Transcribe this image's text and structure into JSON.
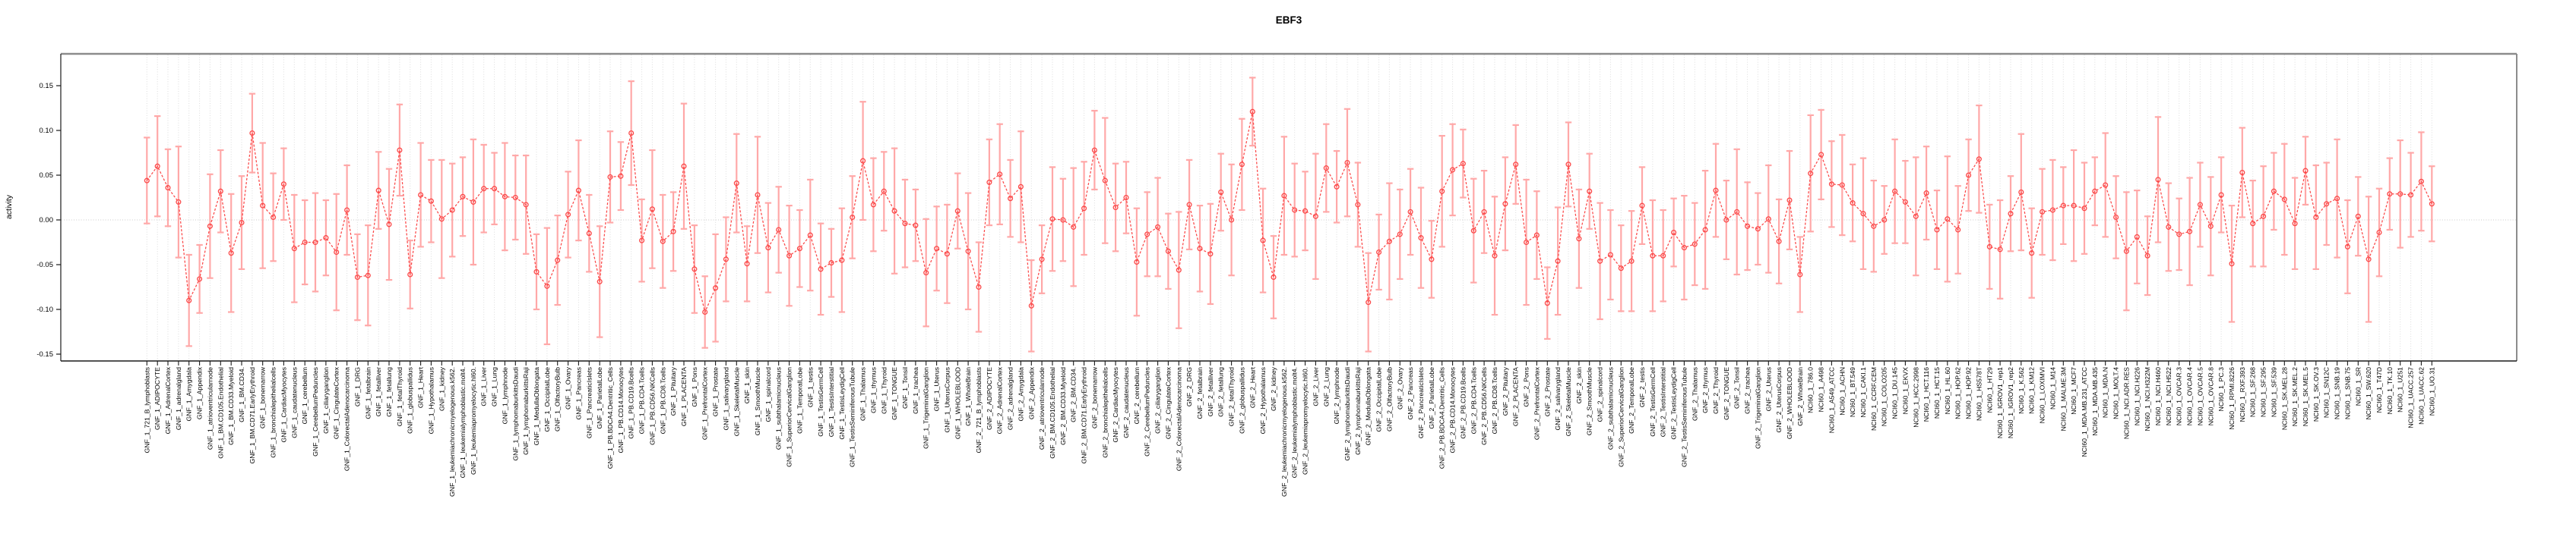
{
  "title": "EBF3",
  "y_axis": {
    "label": "activity",
    "ticks": [
      0.15,
      0.1,
      0.05,
      0.0,
      -0.05,
      -0.1,
      -0.15
    ],
    "tick_labels": [
      "0.15",
      "0.10",
      "0.05",
      "0.00",
      "-0.05",
      "-0.10",
      "-0.15"
    ]
  },
  "chart_data": {
    "type": "line",
    "title": "EBF3",
    "xlabel": "",
    "ylabel": "activity",
    "ylim": [
      -0.17,
      0.175
    ],
    "grid": "vertical-dotted-per-category",
    "zero_line": true,
    "error_bars": true,
    "point_style": "open-circle",
    "line_style": "dashed",
    "colors": {
      "series": "#fb4848",
      "error_bar": "#ffa8a8",
      "grid": "#dcdcdc",
      "zero_line": "#d4d4d4",
      "box_top_right": "#8c8c8c",
      "axis": "#1a1a1a"
    },
    "categories": [
      "GNF_1_721_B_lymphoblasts",
      "GNF_1_ADIPOCYTE",
      "GNF_1_AdrenalCortex",
      "GNF_1_adrenalgland",
      "GNF_1_Amygdala",
      "GNF_1_Appendix",
      "GNF_1_atrioventricularnode",
      "GNF_1_BM.CD105.Endothelial",
      "GNF_1_BM.CD33.Myeloid",
      "GNF_1_BM.CD34.",
      "GNF_1_BM.CD71.EarlyErythroid",
      "GNF_1_bonemarrow",
      "GNF_1_bronchialepithelialcells",
      "GNF_1_CardiacMyocytes",
      "GNF_1_caudatenucleus",
      "GNF_1_cerebellum",
      "GNF_1_CerebellumPeduncles",
      "GNF_1_ciliaryganglion",
      "GNF_1_CingulateCortex",
      "GNF_1_ColorectalAdenocarcinoma",
      "GNF_1_DRG",
      "GNF_1_fetalbrain",
      "GNF_1_fetalliver",
      "GNF_1_fetallung",
      "GNF_1_fetalThyroid",
      "GNF_1_globuspallidus",
      "GNF_1_Heart",
      "GNF_1_Hypothalamus",
      "GNF_1_kidney",
      "GNF_1_leukemiachronicmyelogenous.k562.",
      "GNF_1_leukemialymphoblastic.molt4.",
      "GNF_1_leukemiapromyelocytic.hl60.",
      "GNF_1_Liver",
      "GNF_1_Lung",
      "GNF_1_lymphnode",
      "GNF_1_lymphomaburkittsDaudi",
      "GNF_1_lymphomaburkittsRaji",
      "GNF_1_MedullaOblongata",
      "GNF_1_OccipitalLobe",
      "GNF_1_OlfactoryBulb",
      "GNF_1_Ovary",
      "GNF_1_Pancreas",
      "GNF_1_PancreaticIslets",
      "GNF_1_ParietalLobe",
      "GNF_1_PB.BDCA4.Dentritic_Cells",
      "GNF_1_PB.CD14.Monocytes",
      "GNF_1_PB.CD19.Bcells",
      "GNF_1_PB.CD4.Tcells",
      "GNF_1_PB.CD56.NKCells",
      "GNF_1_PB.CD8.Tcells",
      "GNF_1_Pituitary",
      "GNF_1_PLACENTA",
      "GNF_1_Pons",
      "GNF_1_PrefrontalCortex",
      "GNF_1_Prostate",
      "GNF_1_salivarygland",
      "GNF_1_SkeletalMuscle",
      "GNF_1_skin",
      "GNF_1_SmoothMuscle",
      "GNF_1_spinalcord",
      "GNF_1_subthalamicnucleus",
      "GNF_1_SuperiorCervicalGanglion",
      "GNF_1_TemporalLobe",
      "GNF_1_testis",
      "GNF_1_TestisGermCell",
      "GNF_1_TestisInterstitial",
      "GNF_1_TestisLeydigCell",
      "GNF_1_TestisSeminiferousTubule",
      "GNF_1_Thalamus",
      "GNF_1_thymus",
      "GNF_1_Thyroid",
      "GNF_1_TONGUE",
      "GNF_1_Tonsil",
      "GNF_1_trachea",
      "GNF_1_TrigeminalGanglion",
      "GNF_1_Uterus",
      "GNF_1_UterusCorpus",
      "GNF_1_WHOLEBLOOD",
      "GNF_1_WholeBrain",
      "GNF_2_721_B_lymphoblasts",
      "GNF_2_ADIPOCYTE",
      "GNF_2_AdrenalCortex",
      "GNF_2_adrenalgland",
      "GNF_2_Amygdala",
      "GNF_2_Appendix",
      "GNF_2_atrioventricularnode",
      "GNF_2_BM.CD105.Endothelial",
      "GNF_2_BM.CD33.Myeloid",
      "GNF_2_BM.CD34.",
      "GNF_2_BM.CD71.EarlyErythroid",
      "GNF_2_bonemarrow",
      "GNF_2_bronchialepithelialcells",
      "GNF_2_CardiacMyocytes",
      "GNF_2_caudatenucleus",
      "GNF_2_cerebellum",
      "GNF_2_CerebellumPeduncles",
      "GNF_2_ciliaryganglion",
      "GNF_2_CingulateCortex",
      "GNF_2_ColorectalAdenocarcinoma",
      "GNF_2_DRG",
      "GNF_2_fetalbrain",
      "GNF_2_fetalliver",
      "GNF_2_fetallung",
      "GNF_2_fetalThyroid",
      "GNF_2_globuspallidus",
      "GNF_2_Heart",
      "GNF_2_Hypothalamus",
      "GNF_2_kidney",
      "GNF_2_leukemiachronicmyelogenous.k562.",
      "GNF_2_leukemialymphoblastic.molt4.",
      "GNF_2_leukemiapromyelocytic.hl60.",
      "GNF_2_Liver",
      "GNF_2_Lung",
      "GNF_2_lymphnode",
      "GNF_2_lymphomaburkittsDaudi",
      "GNF_2_lymphomaburkittsRaji",
      "GNF_2_MedullaOblongata",
      "GNF_2_OccipitalLobe",
      "GNF_2_OlfactoryBulb",
      "GNF_2_Ovary",
      "GNF_2_Pancreas",
      "GNF_2_PancreaticIslets",
      "GNF_2_ParietalLobe",
      "GNF_2_PB.BDCA4.Dentritic_Cells",
      "GNF_2_PB.CD14.Monocytes",
      "GNF_2_PB.CD19.Bcells",
      "GNF_2_PB.CD4.Tcells",
      "GNF_2_PB.CD56.NKCells",
      "GNF_2_PB.CD8.Tcells",
      "GNF_2_Pituitary",
      "GNF_2_PLACENTA",
      "GNF_2_Pons",
      "GNF_2_PrefrontalCortex",
      "GNF_2_Prostate",
      "GNF_2_salivarygland",
      "GNF_2_SkeletalMuscle",
      "GNF_2_skin",
      "GNF_2_SmoothMuscle",
      "GNF_2_spinalcord",
      "GNF_2_subthalamicnucleus",
      "GNF_2_SuperiorCervicalGanglion",
      "GNF_2_TemporalLobe",
      "GNF_2_testis",
      "GNF_2_TestisGermCell",
      "GNF_2_TestisInterstitial",
      "GNF_2_TestisLeydigCell",
      "GNF_2_TestisSeminiferousTubule",
      "GNF_2_Thalamus",
      "GNF_2_thymus",
      "GNF_2_Thyroid",
      "GNF_2_TONGUE",
      "GNF_2_Tonsil",
      "GNF_2_trachea",
      "GNF_2_TrigeminalGanglion",
      "GNF_2_Uterus",
      "GNF_2_UterusCorpus",
      "GNF_2_WHOLEBLOOD",
      "GNF_2_WholeBrain",
      "NCI60_1_786.0",
      "NCI60_1_A498",
      "NCI60_1_A549_ATCC",
      "NCI60_1_ACHN",
      "NCI60_1_BT.549",
      "NCI60_1_CAKI.1",
      "NCI60_1_CCRF.CEM",
      "NCI60_1_COLO205",
      "NCI60_1_DU.145",
      "NCI60_1_EKVX",
      "NCI60_1_HCC.2998",
      "NCI60_1_HCT.116",
      "NCI60_1_HCT.15",
      "NCI60_1_HL.60",
      "NCI60_1_HOP.62",
      "NCI60_1_HOP.92",
      "NCI60_1_HS578T",
      "NCI60_1_HT29",
      "NCI60_1_IGROV1_rep1",
      "NCI60_1_IGROV1_rep2",
      "NCI60_1_K.562",
      "NCI60_1_KM12",
      "NCI60_1_LOXIMVI",
      "NCI60_1_M14",
      "NCI60_1_MALME.3M",
      "NCI60_1_MCF7",
      "NCI60_1_MDA.MB.231_ATCC",
      "NCI60_1_MDA.MB.435",
      "NCI60_1_MDA.N",
      "NCI60_1_MOLT.4",
      "NCI60_1_NCI.ADR.RES",
      "NCI60_1_NCI.H226",
      "NCI60_1_NCI.H322M",
      "NCI60_1_NCI.H460",
      "NCI60_1_NCI.H522",
      "NCI60_1_OVCAR.3",
      "NCI60_1_OVCAR.4",
      "NCI60_1_OVCAR.5",
      "NCI60_1_OVCAR.8",
      "NCI60_1_PC.3",
      "NCI60_1_RPMI.8226",
      "NCI60_1_RXF.393",
      "NCI60_1_SF.268",
      "NCI60_1_SF.295",
      "NCI60_1_SF.539",
      "NCI60_1_SK.MEL.28",
      "NCI60_1_SK.MEL.2",
      "NCI60_1_SK.MEL.5",
      "NCI60_1_SK.OV.3",
      "NCI60_1_SN12C",
      "NCI60_1_SNB.19",
      "NCI60_1_SNB.75",
      "NCI60_1_SR",
      "NCI60_1_SW.620",
      "NCI60_1_T47D",
      "NCI60_1_TK.10",
      "NCI60_1_U251",
      "NCI60_1_UACC.257",
      "NCI60_1_UACC.62",
      "NCI60_1_UO.31"
    ],
    "values": [
      0.044,
      0.06,
      0.036,
      0.02,
      -0.09,
      -0.066,
      -0.007,
      0.032,
      -0.037,
      -0.003,
      0.097,
      0.016,
      0.003,
      0.04,
      -0.032,
      -0.025,
      -0.025,
      -0.02,
      -0.036,
      0.011,
      -0.064,
      -0.062,
      0.033,
      -0.005,
      0.078,
      -0.061,
      0.028,
      0.021,
      0.001,
      0.011,
      0.026,
      0.02,
      0.035,
      0.035,
      0.026,
      0.025,
      0.017,
      -0.058,
      -0.074,
      -0.045,
      0.006,
      0.033,
      -0.015,
      -0.069,
      0.048,
      0.049,
      0.097,
      -0.023,
      0.012,
      -0.024,
      -0.013,
      0.06,
      -0.055,
      -0.103,
      -0.076,
      -0.044,
      0.041,
      -0.049,
      0.028,
      -0.031,
      -0.011,
      -0.04,
      -0.032,
      -0.017,
      -0.055,
      -0.048,
      -0.045,
      0.003,
      0.066,
      0.017,
      0.032,
      0.01,
      -0.004,
      -0.006,
      -0.059,
      -0.032,
      -0.038,
      0.01,
      -0.035,
      -0.075,
      0.042,
      0.051,
      0.024,
      0.037,
      -0.096,
      -0.044,
      0.001,
      0.0,
      -0.008,
      0.013,
      0.078,
      0.044,
      0.014,
      0.025,
      -0.047,
      -0.016,
      -0.008,
      -0.035,
      -0.056,
      0.017,
      -0.032,
      -0.038,
      0.031,
      0.0,
      0.062,
      0.121,
      -0.023,
      -0.064,
      0.027,
      0.011,
      0.01,
      0.004,
      0.058,
      0.037,
      0.064,
      0.017,
      -0.092,
      -0.036,
      -0.024,
      -0.016,
      0.009,
      -0.02,
      -0.044,
      0.032,
      0.056,
      0.063,
      -0.012,
      0.009,
      -0.04,
      0.018,
      0.062,
      -0.025,
      -0.017,
      -0.093,
      -0.046,
      0.062,
      -0.021,
      0.032,
      -0.046,
      -0.039,
      -0.054,
      -0.046,
      0.016,
      -0.04,
      -0.04,
      -0.014,
      -0.031,
      -0.027,
      -0.011,
      0.033,
      0.0,
      0.009,
      -0.007,
      -0.01,
      0.001,
      -0.024,
      0.022,
      -0.061,
      0.052,
      0.073,
      0.04,
      0.039,
      0.019,
      0.007,
      -0.007,
      0.0,
      0.032,
      0.02,
      0.004,
      0.03,
      -0.011,
      0.001,
      -0.011,
      0.05,
      0.068,
      -0.03,
      -0.033,
      0.007,
      0.031,
      -0.037,
      0.009,
      0.011,
      0.016,
      0.016,
      0.013,
      0.032,
      0.039,
      0.003,
      -0.035,
      -0.019,
      -0.04,
      0.045,
      -0.008,
      -0.016,
      -0.013,
      0.017,
      -0.007,
      0.028,
      -0.049,
      0.053,
      -0.004,
      0.004,
      0.032,
      0.023,
      -0.004,
      0.055,
      0.003,
      0.018,
      0.024,
      -0.03,
      0.004,
      -0.044,
      -0.014,
      0.029,
      0.029,
      0.028,
      0.043,
      0.018
    ],
    "errors": [
      0.048,
      0.056,
      0.043,
      0.062,
      0.051,
      0.038,
      0.058,
      0.046,
      0.066,
      0.052,
      0.044,
      0.07,
      0.049,
      0.04,
      0.06,
      0.047,
      0.055,
      0.042,
      0.065,
      0.05,
      0.048,
      0.056,
      0.043,
      0.062,
      0.051,
      0.038,
      0.058,
      0.046,
      0.066,
      0.052,
      0.044,
      0.07,
      0.049,
      0.04,
      0.06,
      0.047,
      0.055,
      0.042,
      0.065,
      0.05,
      0.048,
      0.056,
      0.043,
      0.062,
      0.051,
      0.038,
      0.058,
      0.046,
      0.066,
      0.052,
      0.044,
      0.07,
      0.049,
      0.04,
      0.06,
      0.047,
      0.055,
      0.042,
      0.065,
      0.05,
      0.048,
      0.056,
      0.043,
      0.062,
      0.051,
      0.038,
      0.058,
      0.046,
      0.066,
      0.052,
      0.044,
      0.07,
      0.049,
      0.04,
      0.06,
      0.047,
      0.055,
      0.042,
      0.065,
      0.05,
      0.048,
      0.056,
      0.043,
      0.062,
      0.051,
      0.038,
      0.058,
      0.046,
      0.066,
      0.052,
      0.044,
      0.07,
      0.049,
      0.04,
      0.06,
      0.047,
      0.055,
      0.042,
      0.065,
      0.05,
      0.048,
      0.056,
      0.043,
      0.062,
      0.051,
      0.038,
      0.058,
      0.046,
      0.066,
      0.052,
      0.044,
      0.07,
      0.049,
      0.04,
      0.06,
      0.047,
      0.055,
      0.042,
      0.065,
      0.05,
      0.048,
      0.056,
      0.043,
      0.062,
      0.051,
      0.038,
      0.058,
      0.046,
      0.066,
      0.052,
      0.044,
      0.07,
      0.049,
      0.04,
      0.06,
      0.047,
      0.055,
      0.042,
      0.065,
      0.05,
      0.048,
      0.056,
      0.043,
      0.062,
      0.051,
      0.038,
      0.058,
      0.046,
      0.066,
      0.052,
      0.044,
      0.07,
      0.049,
      0.04,
      0.06,
      0.047,
      0.055,
      0.042,
      0.065,
      0.05,
      0.048,
      0.056,
      0.043,
      0.062,
      0.051,
      0.038,
      0.058,
      0.046,
      0.066,
      0.052,
      0.044,
      0.07,
      0.049,
      0.04,
      0.06,
      0.047,
      0.055,
      0.042,
      0.065,
      0.05,
      0.048,
      0.056,
      0.043,
      0.062,
      0.051,
      0.038,
      0.058,
      0.046,
      0.066,
      0.052,
      0.044,
      0.07,
      0.049,
      0.04,
      0.06,
      0.047,
      0.055,
      0.042,
      0.065,
      0.05,
      0.048,
      0.056,
      0.043,
      0.062,
      0.051,
      0.038,
      0.058,
      0.046,
      0.066,
      0.052,
      0.044,
      0.07,
      0.049,
      0.04,
      0.06,
      0.047,
      0.055,
      0.042
    ]
  }
}
